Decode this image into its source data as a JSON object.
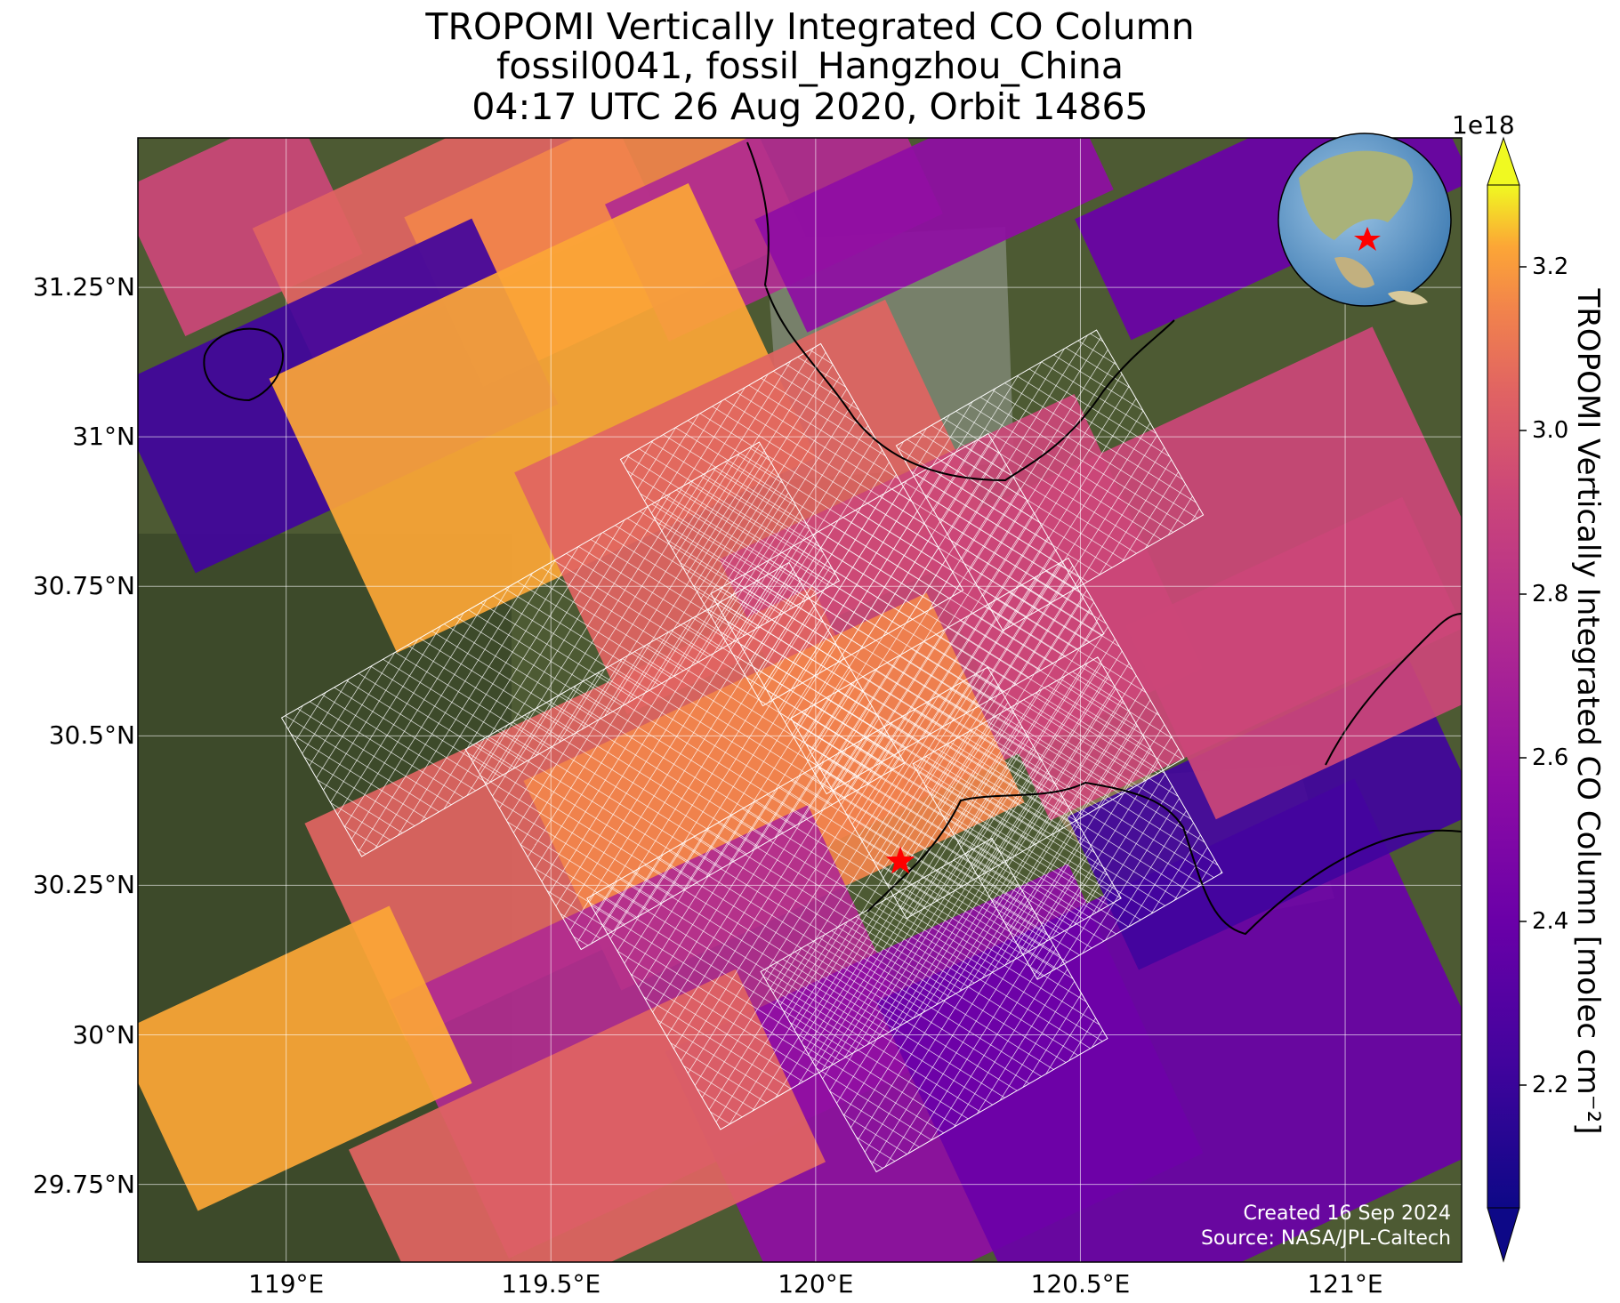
{
  "title": {
    "line1": "TROPOMI Vertically Integrated CO Column",
    "line2": "fossil0041, fossil_Hangzhou_China",
    "line3": "04:17 UTC 26 Aug 2020, Orbit 14865"
  },
  "axes": {
    "lat_labels": [
      "31.25°N",
      "31°N",
      "30.75°N",
      "30.5°N",
      "30.25°N",
      "30°N",
      "29.75°N"
    ],
    "lat_values": [
      31.25,
      31.0,
      30.75,
      30.5,
      30.25,
      30.0,
      29.75
    ],
    "lon_labels": [
      "119°E",
      "119.5°E",
      "120°E",
      "120.5°E",
      "121°E"
    ],
    "lon_values": [
      119.0,
      119.5,
      120.0,
      120.5,
      121.0
    ],
    "lon_range": [
      118.72,
      121.22
    ],
    "lat_range": [
      29.62,
      31.5
    ]
  },
  "colorbar": {
    "label": "TROPOMI Vertically Integrated CO Column [molec cm⁻²]",
    "exponent": "1e18",
    "ticks": [
      "2.2",
      "2.4",
      "2.6",
      "2.8",
      "3.0",
      "3.2"
    ],
    "tick_values": [
      2.2,
      2.4,
      2.6,
      2.8,
      3.0,
      3.2
    ],
    "range": [
      2.05,
      3.3
    ],
    "colormap": "plasma"
  },
  "site_marker": {
    "lon": 120.16,
    "lat": 30.29,
    "color": "#ff0000"
  },
  "credits": {
    "created": "Created 16 Sep 2024",
    "source": "Source: NASA/JPL-Caltech"
  },
  "inset": {
    "type": "globe-locator",
    "marker_color": "#ff0000"
  }
}
